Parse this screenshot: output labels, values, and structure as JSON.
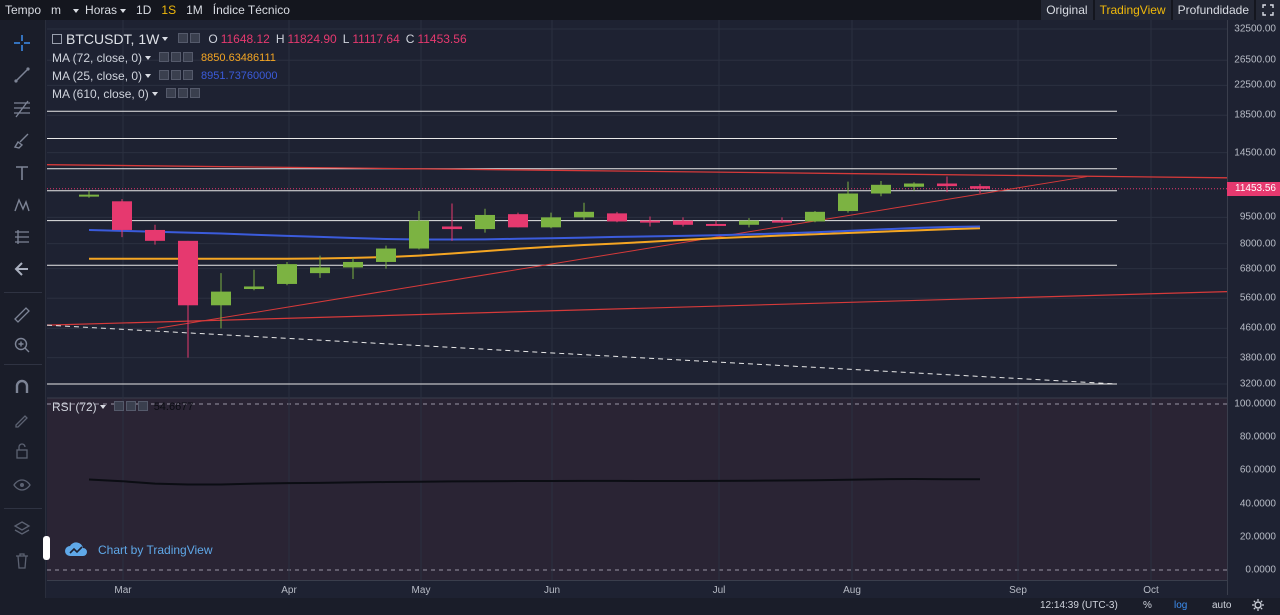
{
  "toolbar": {
    "tempo": "Tempo",
    "interval_select": "m",
    "hours": "Horas",
    "tf_1d": "1D",
    "tf_1s": "1S",
    "tf_1m": "1M",
    "indicators": "Índice Técnico",
    "original": "Original",
    "tradingview": "TradingView",
    "depth": "Profundidade"
  },
  "legend": {
    "symbol": "BTCUSDT, 1W",
    "o_label": "O",
    "o_value": "11648.12",
    "h_label": "H",
    "h_value": "11824.90",
    "l_label": "L",
    "l_value": "11117.64",
    "c_label": "C",
    "c_value": "11453.56",
    "ma72_label": "MA (72, close, 0)",
    "ma72_value": "8850.63486111",
    "ma25_label": "MA (25, close, 0)",
    "ma25_value": "8951.73760000",
    "ma610_label": "MA (610, close, 0)",
    "rsi_label": "RSI (72)",
    "rsi_value": "54.6677"
  },
  "colors": {
    "up": "#7cb342",
    "down": "#e6396f",
    "ma72": "#f5a623",
    "ma25": "#3b5bdb",
    "rsi": "#0b0d13",
    "trend": "#d63a3a",
    "hline": "#e8e8e8",
    "accent": "#f0b90b"
  },
  "watermark": "Chart by TradingView",
  "bottom": {
    "clock": "12:14:39 (UTC-3)",
    "percent": "%",
    "log": "log",
    "auto": "auto"
  },
  "chart_data": {
    "type": "candlestick",
    "title": "BTCUSDT, 1W",
    "scale": "log",
    "price_ticks": [
      32500,
      26500,
      22500,
      18500,
      14500,
      11453.56,
      9500,
      8000,
      6800,
      5600,
      4600,
      3800,
      3200
    ],
    "price_tick_labels": [
      "32500.00",
      "26500.00",
      "22500.00",
      "18500.00",
      "14500.00",
      "11453.56",
      "9500.00",
      "8000.00",
      "6800.00",
      "5600.00",
      "4600.00",
      "3800.00",
      "3200.00"
    ],
    "last_price": "11453.56",
    "x_labels": [
      "Mar",
      "Apr",
      "May",
      "Jun",
      "Jul",
      "Aug",
      "Sep",
      "Oct"
    ],
    "candles": [
      {
        "o": 11000,
        "h": 11300,
        "l": 10800,
        "c": 11020
      },
      {
        "o": 10550,
        "h": 10700,
        "l": 8350,
        "c": 8750
      },
      {
        "o": 8750,
        "h": 9050,
        "l": 7950,
        "c": 8150
      },
      {
        "o": 8150,
        "h": 8150,
        "l": 3800,
        "c": 5350
      },
      {
        "o": 5350,
        "h": 6600,
        "l": 4600,
        "c": 5850
      },
      {
        "o": 5950,
        "h": 6750,
        "l": 5900,
        "c": 6050
      },
      {
        "o": 6150,
        "h": 7100,
        "l": 6100,
        "c": 7000
      },
      {
        "o": 6600,
        "h": 7400,
        "l": 6400,
        "c": 6850
      },
      {
        "o": 6850,
        "h": 7300,
        "l": 6350,
        "c": 7100
      },
      {
        "o": 7100,
        "h": 7900,
        "l": 6800,
        "c": 7750
      },
      {
        "o": 7750,
        "h": 9900,
        "l": 7700,
        "c": 9300
      },
      {
        "o": 8950,
        "h": 10400,
        "l": 8150,
        "c": 8800
      },
      {
        "o": 8800,
        "h": 10050,
        "l": 8600,
        "c": 9650
      },
      {
        "o": 9700,
        "h": 9800,
        "l": 8900,
        "c": 8900
      },
      {
        "o": 8900,
        "h": 9800,
        "l": 8850,
        "c": 9500
      },
      {
        "o": 9500,
        "h": 10450,
        "l": 9350,
        "c": 9850
      },
      {
        "o": 9750,
        "h": 9850,
        "l": 9200,
        "c": 9250
      },
      {
        "o": 9300,
        "h": 9550,
        "l": 8950,
        "c": 9250
      },
      {
        "o": 9300,
        "h": 9500,
        "l": 8950,
        "c": 9050
      },
      {
        "o": 9100,
        "h": 9300,
        "l": 9000,
        "c": 9050
      },
      {
        "o": 9050,
        "h": 9450,
        "l": 8900,
        "c": 9300
      },
      {
        "o": 9300,
        "h": 9500,
        "l": 9150,
        "c": 9250
      },
      {
        "o": 9250,
        "h": 9900,
        "l": 9200,
        "c": 9850
      },
      {
        "o": 9900,
        "h": 12000,
        "l": 9800,
        "c": 11100
      },
      {
        "o": 11100,
        "h": 12050,
        "l": 10900,
        "c": 11750
      },
      {
        "o": 11600,
        "h": 11950,
        "l": 11300,
        "c": 11850
      },
      {
        "o": 11850,
        "h": 12400,
        "l": 11200,
        "c": 11650
      },
      {
        "o": 11650,
        "h": 11825,
        "l": 11118,
        "c": 11454
      }
    ],
    "ma72": [
      7250,
      7250,
      7250,
      7250,
      7250,
      7250,
      7250,
      7260,
      7290,
      7330,
      7400,
      7500,
      7620,
      7740,
      7840,
      7930,
      8010,
      8100,
      8200,
      8290,
      8360,
      8440,
      8510,
      8580,
      8650,
      8720,
      8790,
      8850
    ],
    "ma25": [
      8750,
      8700,
      8650,
      8600,
      8550,
      8480,
      8420,
      8360,
      8300,
      8250,
      8220,
      8220,
      8230,
      8260,
      8290,
      8320,
      8360,
      8390,
      8420,
      8450,
      8500,
      8560,
      8620,
      8700,
      8780,
      8860,
      8920,
      8952
    ],
    "rsi": {
      "y_ticks": [
        "100.0000",
        "80.0000",
        "60.0000",
        "40.0000",
        "20.0000",
        "0.0000"
      ],
      "values": [
        54.5,
        53.5,
        52.0,
        51.5,
        51.5,
        52.0,
        52.3,
        52.5,
        52.8,
        53.0,
        53.2,
        53.4,
        53.5,
        53.6,
        53.6,
        53.7,
        53.7,
        53.6,
        53.6,
        53.7,
        53.8,
        53.9,
        54.1,
        54.4,
        54.7,
        54.8,
        54.7,
        54.7
      ],
      "last": "54.6677"
    },
    "horizontal_levels": [
      19000,
      15900,
      13050,
      11300,
      9300,
      6950,
      3200
    ],
    "grid": true
  }
}
